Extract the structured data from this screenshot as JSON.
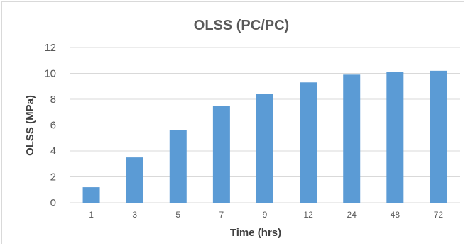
{
  "chart_data": {
    "type": "bar",
    "title": "OLSS (PC/PC)",
    "xlabel": "Time (hrs)",
    "ylabel": "OLSS (MPa)",
    "categories": [
      "1",
      "3",
      "5",
      "7",
      "9",
      "12",
      "24",
      "48",
      "72"
    ],
    "values": [
      1.2,
      3.5,
      5.6,
      7.5,
      8.4,
      9.3,
      9.9,
      10.1,
      10.2
    ],
    "ylim": [
      0,
      12
    ],
    "yticks": [
      0,
      2,
      4,
      6,
      8,
      10,
      12
    ],
    "grid": true,
    "legend": "none",
    "bar_color": "#5b9bd5"
  }
}
